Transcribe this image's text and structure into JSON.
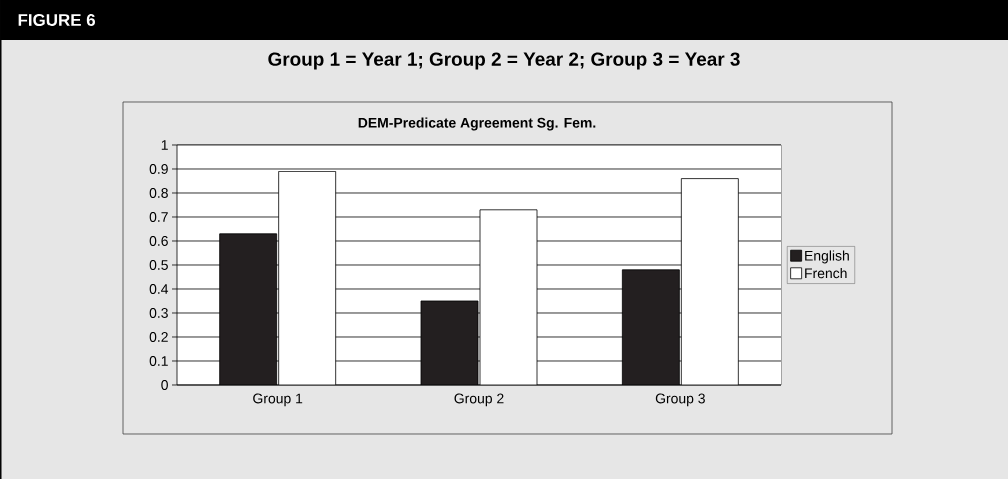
{
  "chart_data": {
    "type": "bar",
    "title": "DEM-Predicate Agreement Sg. Fem.",
    "subtitle": "Group 1 = Year 1; Group 2 = Year 2; Group 3 = Year 3",
    "annotations": [
      "FIGURE 6"
    ],
    "categories": [
      "Group 1",
      "Group 2",
      "Group 3"
    ],
    "series": [
      {
        "name": "English",
        "color": "#231f20",
        "values": [
          0.63,
          0.35,
          0.48
        ]
      },
      {
        "name": "French",
        "color": "#ffffff",
        "values": [
          0.89,
          0.73,
          0.86
        ]
      }
    ],
    "ylim": [
      0,
      1
    ],
    "yticks": [
      0,
      0.1,
      0.2,
      0.3,
      0.4,
      0.5,
      0.6,
      0.7,
      0.8,
      0.9,
      1
    ],
    "grid": "y",
    "legend": "right"
  }
}
